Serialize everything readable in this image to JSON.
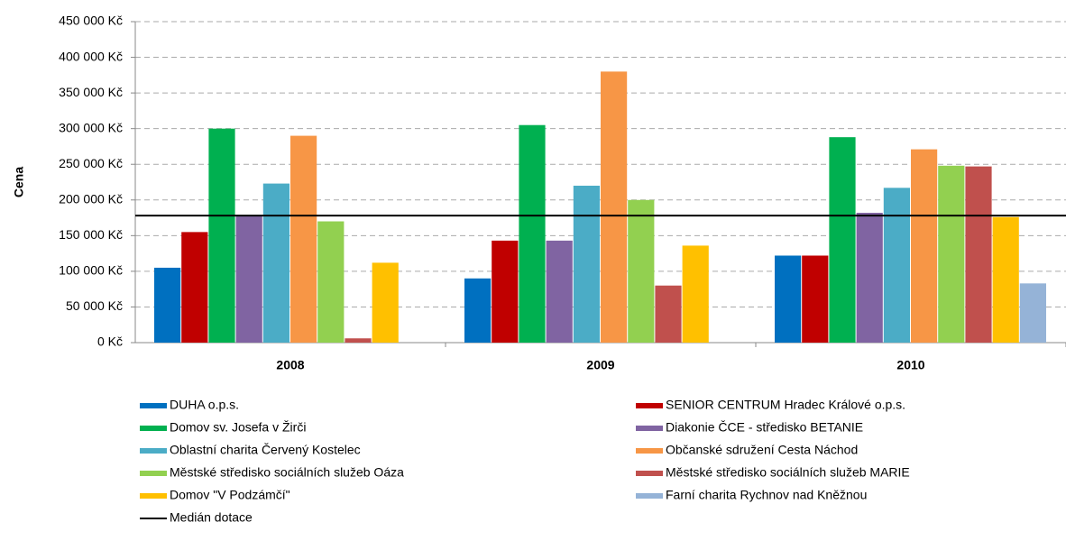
{
  "chart_data": {
    "type": "bar",
    "ylabel": "Cena",
    "categories": [
      "2008",
      "2009",
      "2010"
    ],
    "series": [
      {
        "name": "DUHA o.p.s.",
        "color": "#0070c0",
        "values": [
          105000,
          90000,
          122000
        ]
      },
      {
        "name": "SENIOR CENTRUM Hradec Králové o.p.s.",
        "color": "#c00000",
        "values": [
          155000,
          143000,
          122000
        ]
      },
      {
        "name": "Domov sv. Josefa v Žirči",
        "color": "#00b050",
        "values": [
          300000,
          305000,
          288000
        ]
      },
      {
        "name": "Diakonie ČCE - středisko BETANIE",
        "color": "#8064a2",
        "values": [
          178000,
          143000,
          182000
        ]
      },
      {
        "name": "Oblastní charita Červený Kostelec",
        "color": "#4bacc6",
        "values": [
          223000,
          220000,
          217000
        ]
      },
      {
        "name": "Občanské sdružení Cesta Náchod",
        "color": "#f79646",
        "values": [
          290000,
          380000,
          271000
        ]
      },
      {
        "name": "Městské středisko sociálních služeb Oáza",
        "color": "#92d050",
        "values": [
          170000,
          200000,
          248000
        ]
      },
      {
        "name": "Městské středisko sociálních služeb MARIE",
        "color": "#c0504d",
        "values": [
          6000,
          80000,
          247000
        ]
      },
      {
        "name": "Domov \"V Podzámčí\"",
        "color": "#ffc000",
        "values": [
          112000,
          136000,
          176000
        ]
      },
      {
        "name": "Farní charita Rychnov nad Kněžnou",
        "color": "#95b3d7",
        "values": [
          null,
          null,
          83000
        ]
      }
    ],
    "median": {
      "name": "Medián dotace",
      "value": 178000,
      "color": "#000000"
    },
    "ylim": [
      0,
      450000
    ],
    "yticks": [
      {
        "value": 0,
        "label": "0 Kč"
      },
      {
        "value": 50000,
        "label": "50 000 Kč"
      },
      {
        "value": 100000,
        "label": "100 000 Kč"
      },
      {
        "value": 150000,
        "label": "150 000 Kč"
      },
      {
        "value": 200000,
        "label": "200 000 Kč"
      },
      {
        "value": 250000,
        "label": "250 000 Kč"
      },
      {
        "value": 300000,
        "label": "300 000 Kč"
      },
      {
        "value": 350000,
        "label": "350 000 Kč"
      },
      {
        "value": 400000,
        "label": "400 000 Kč"
      },
      {
        "value": 450000,
        "label": "450 000 Kč"
      }
    ],
    "grid": true
  }
}
